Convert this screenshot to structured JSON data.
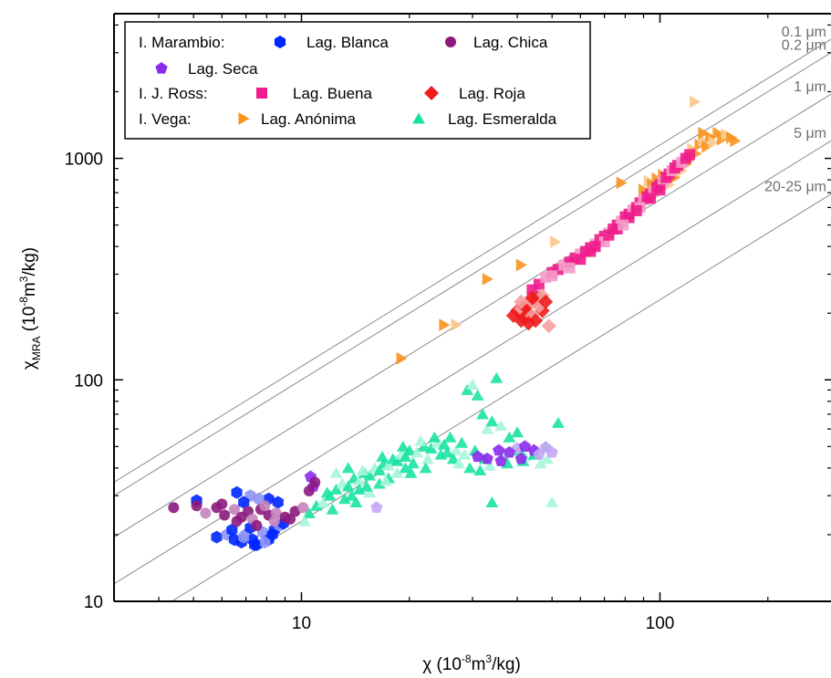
{
  "chart_data": {
    "type": "scatter",
    "xlabel": "χ (10⁻⁸m³/kg)",
    "ylabel": "χMRA (10⁻⁸m³/kg)",
    "xlabel_parts": {
      "prefix": "χ (10",
      "exp1": "-8",
      "mid": "m",
      "exp2": "3",
      "suffix": "/kg)"
    },
    "ylabel_parts": {
      "chi": "χ",
      "sub": "MRA",
      "open": " (10",
      "exp1": "-8",
      "mid": "m",
      "exp2": "3",
      "suffix": "/kg)"
    },
    "xscale": "log",
    "yscale": "log",
    "xlim": [
      3,
      300
    ],
    "ylim": [
      10,
      4500
    ],
    "x_tick_labels": [
      "10",
      "100"
    ],
    "y_tick_labels": [
      "10",
      "100",
      "1000"
    ],
    "grid": false,
    "legend_position": "top-left",
    "legend_groups": [
      {
        "label": "I. Marambio:",
        "series": [
          "Lag. Blanca",
          "Lag. Chica",
          "Lag. Seca"
        ]
      },
      {
        "label": "I. J. Ross:",
        "series": [
          "Lag. Buena",
          "Lag. Roja"
        ]
      },
      {
        "label": "I. Vega:",
        "series": [
          "Lag. Anónima",
          "Lag. Esmeralda"
        ]
      }
    ],
    "guide_lines": [
      {
        "label": "0.1 μm",
        "ratio": 11.5
      },
      {
        "label": "0.2 μm",
        "ratio": 10.0
      },
      {
        "label": "1 μm",
        "ratio": 6.5
      },
      {
        "label": "5 μm",
        "ratio": 4.0
      },
      {
        "label": "20-25 μm",
        "ratio": 2.3
      }
    ],
    "series": [
      {
        "name": "Lag. Blanca",
        "marker": "hexagon",
        "color": "#0026ff",
        "light_color": "#8c93f5",
        "points": [
          [
            5.1,
            28.5
          ],
          [
            6.6,
            31
          ],
          [
            7.2,
            30
          ],
          [
            8.1,
            29
          ],
          [
            6.9,
            28
          ],
          [
            7.6,
            29
          ],
          [
            8.6,
            28
          ],
          [
            5.8,
            19.5
          ],
          [
            6.2,
            20
          ],
          [
            6.5,
            19
          ],
          [
            6.8,
            18.5
          ],
          [
            7.0,
            20
          ],
          [
            7.3,
            19
          ],
          [
            7.5,
            18
          ],
          [
            7.8,
            20.5
          ],
          [
            8.1,
            19
          ],
          [
            8.4,
            21
          ],
          [
            8.7,
            22
          ],
          [
            7.2,
            21.5
          ],
          [
            6.4,
            21
          ],
          [
            7.9,
            18.5
          ],
          [
            8.3,
            20
          ],
          [
            7.4,
            18
          ],
          [
            6.9,
            19.5
          ],
          [
            8.9,
            22.5
          ]
        ]
      },
      {
        "name": "Lag. Chica",
        "marker": "circle",
        "color": "#8c1a7d",
        "light_color": "#c583bd",
        "points": [
          [
            4.4,
            26.5
          ],
          [
            5.1,
            27
          ],
          [
            5.4,
            25
          ],
          [
            5.8,
            26.5
          ],
          [
            6.1,
            24.5
          ],
          [
            6.5,
            26
          ],
          [
            6.8,
            24
          ],
          [
            7.1,
            25.5
          ],
          [
            7.3,
            23.5
          ],
          [
            7.7,
            26
          ],
          [
            8.1,
            24.5
          ],
          [
            8.5,
            25
          ],
          [
            9.0,
            24
          ],
          [
            9.6,
            25.5
          ],
          [
            10.1,
            26.5
          ],
          [
            10.5,
            31.5
          ],
          [
            10.9,
            34.5
          ],
          [
            8.4,
            23
          ],
          [
            7.5,
            22
          ],
          [
            6.6,
            23
          ],
          [
            7.9,
            27
          ],
          [
            9.3,
            23.5
          ],
          [
            6.0,
            27.5
          ]
        ]
      },
      {
        "name": "Lag. Seca",
        "marker": "pentagon",
        "color": "#8c2aed",
        "light_color": "#c4a6f5",
        "points": [
          [
            10.6,
            36.5
          ],
          [
            10.8,
            33
          ],
          [
            16.2,
            26.5
          ],
          [
            31.0,
            45
          ],
          [
            35.5,
            48
          ],
          [
            40.0,
            49
          ],
          [
            42.0,
            50
          ],
          [
            44.5,
            48
          ],
          [
            48.0,
            49.5
          ],
          [
            38.0,
            47
          ],
          [
            33.0,
            44
          ],
          [
            46.0,
            46
          ],
          [
            41.0,
            44
          ],
          [
            36.0,
            43
          ],
          [
            50.0,
            47
          ]
        ]
      },
      {
        "name": "Lag. Buena",
        "marker": "square",
        "color": "#f01c8c",
        "light_color": "#f59cc8",
        "points": [
          [
            44,
            255
          ],
          [
            46,
            270
          ],
          [
            48,
            290
          ],
          [
            50,
            305
          ],
          [
            52,
            315
          ],
          [
            54,
            330
          ],
          [
            56,
            340
          ],
          [
            58,
            355
          ],
          [
            60,
            370
          ],
          [
            62,
            380
          ],
          [
            64,
            395
          ],
          [
            66,
            410
          ],
          [
            68,
            430
          ],
          [
            70,
            445
          ],
          [
            72,
            460
          ],
          [
            74,
            480
          ],
          [
            76,
            500
          ],
          [
            78,
            520
          ],
          [
            80,
            545
          ],
          [
            82,
            560
          ],
          [
            84,
            585
          ],
          [
            86,
            600
          ],
          [
            88,
            630
          ],
          [
            90,
            650
          ],
          [
            92,
            670
          ],
          [
            94,
            690
          ],
          [
            96,
            710
          ],
          [
            98,
            740
          ],
          [
            100,
            760
          ],
          [
            102,
            790
          ],
          [
            104,
            820
          ],
          [
            106,
            850
          ],
          [
            108,
            880
          ],
          [
            110,
            905
          ],
          [
            112,
            930
          ],
          [
            115,
            960
          ],
          [
            118,
            1000
          ],
          [
            121,
            1040
          ],
          [
            56,
            320
          ],
          [
            60,
            350
          ],
          [
            64,
            380
          ],
          [
            70,
            420
          ],
          [
            76,
            480
          ],
          [
            82,
            540
          ],
          [
            88,
            600
          ],
          [
            94,
            660
          ],
          [
            100,
            720
          ],
          [
            50,
            295
          ],
          [
            66,
            400
          ],
          [
            72,
            450
          ],
          [
            79,
            500
          ],
          [
            86,
            580
          ]
        ]
      },
      {
        "name": "Lag. Roja",
        "marker": "diamond",
        "color": "#ee1c1c",
        "light_color": "#f5a0a0",
        "points": [
          [
            39,
            195
          ],
          [
            40,
            205
          ],
          [
            41,
            210
          ],
          [
            42,
            215
          ],
          [
            43,
            220
          ],
          [
            44,
            225
          ],
          [
            45,
            230
          ],
          [
            46,
            235
          ],
          [
            47,
            240
          ],
          [
            42,
            190
          ],
          [
            43,
            200
          ],
          [
            44,
            195
          ],
          [
            45,
            185
          ],
          [
            47,
            205
          ],
          [
            49,
            175
          ],
          [
            41,
            185
          ],
          [
            43,
            180
          ],
          [
            46,
            215
          ],
          [
            48,
            225
          ],
          [
            44,
            235
          ],
          [
            41,
            225
          ]
        ]
      },
      {
        "name": "Lag. Anónima",
        "marker": "triangle-right",
        "color": "#f7941d",
        "light_color": "#fbc88a",
        "points": [
          [
            19,
            125
          ],
          [
            25,
            177
          ],
          [
            27,
            177
          ],
          [
            33,
            285
          ],
          [
            41,
            330
          ],
          [
            51,
            420
          ],
          [
            78,
            775
          ],
          [
            90,
            720
          ],
          [
            93,
            790
          ],
          [
            95,
            760
          ],
          [
            98,
            810
          ],
          [
            100,
            740
          ],
          [
            102,
            840
          ],
          [
            105,
            800
          ],
          [
            108,
            870
          ],
          [
            110,
            820
          ],
          [
            112,
            900
          ],
          [
            115,
            880
          ],
          [
            118,
            940
          ],
          [
            120,
            980
          ],
          [
            123,
            1100
          ],
          [
            126,
            1050
          ],
          [
            129,
            1150
          ],
          [
            132,
            1200
          ],
          [
            135,
            1130
          ],
          [
            138,
            1250
          ],
          [
            141,
            1180
          ],
          [
            145,
            1300
          ],
          [
            149,
            1220
          ],
          [
            153,
            1280
          ],
          [
            158,
            1240
          ],
          [
            162,
            1200
          ],
          [
            125,
            1800
          ],
          [
            132,
            1300
          ],
          [
            96,
            680
          ],
          [
            106,
            760
          ]
        ]
      },
      {
        "name": "Lag. Esmeralda",
        "marker": "triangle-up",
        "color": "#19e3a3",
        "light_color": "#a6f5da",
        "points": [
          [
            10.5,
            25
          ],
          [
            11,
            27
          ],
          [
            11.5,
            28
          ],
          [
            12,
            30
          ],
          [
            12.5,
            32
          ],
          [
            13,
            34
          ],
          [
            13.5,
            33
          ],
          [
            14,
            36
          ],
          [
            14.5,
            35
          ],
          [
            15,
            38
          ],
          [
            15.5,
            37
          ],
          [
            16,
            40
          ],
          [
            16.5,
            39
          ],
          [
            17,
            42
          ],
          [
            17.5,
            41
          ],
          [
            18,
            44
          ],
          [
            18.5,
            43
          ],
          [
            19,
            46
          ],
          [
            19.5,
            45
          ],
          [
            20,
            48
          ],
          [
            21,
            47
          ],
          [
            22,
            50
          ],
          [
            23,
            49
          ],
          [
            24,
            52
          ],
          [
            25,
            51
          ],
          [
            26,
            55
          ],
          [
            27,
            48
          ],
          [
            28,
            52
          ],
          [
            29,
            90
          ],
          [
            30,
            95
          ],
          [
            31,
            85
          ],
          [
            32,
            70
          ],
          [
            33,
            60
          ],
          [
            34,
            65
          ],
          [
            35,
            102
          ],
          [
            36,
            62
          ],
          [
            38,
            55
          ],
          [
            40,
            58
          ],
          [
            42,
            45
          ],
          [
            45,
            46
          ],
          [
            48,
            50
          ],
          [
            50,
            28
          ],
          [
            52,
            64
          ],
          [
            34,
            28
          ],
          [
            12.5,
            38
          ],
          [
            13.5,
            40
          ],
          [
            14.5,
            32
          ],
          [
            15.5,
            31
          ],
          [
            16.5,
            34
          ],
          [
            17.5,
            36
          ],
          [
            18.5,
            38
          ],
          [
            19.5,
            40
          ],
          [
            20.5,
            42
          ],
          [
            22.5,
            44
          ],
          [
            24.5,
            46
          ],
          [
            26.5,
            44
          ],
          [
            28.5,
            46
          ],
          [
            30.5,
            48
          ],
          [
            32.5,
            44
          ],
          [
            36.5,
            46
          ],
          [
            40.5,
            48
          ],
          [
            44.5,
            46
          ],
          [
            48.5,
            44
          ],
          [
            11.8,
            31
          ],
          [
            13.2,
            29
          ],
          [
            14.8,
            39
          ],
          [
            16.8,
            45
          ],
          [
            19.2,
            50
          ],
          [
            21.5,
            53
          ],
          [
            23.5,
            55
          ],
          [
            25.5,
            47
          ],
          [
            27.5,
            42
          ],
          [
            29.5,
            40
          ],
          [
            31.5,
            39
          ],
          [
            33.5,
            41
          ],
          [
            37.5,
            42
          ],
          [
            41.5,
            43
          ],
          [
            46.5,
            42
          ],
          [
            13.8,
            30
          ],
          [
            15.2,
            33
          ],
          [
            17.2,
            35
          ],
          [
            20.2,
            38
          ],
          [
            22.2,
            40
          ],
          [
            10.2,
            23
          ],
          [
            12.2,
            26
          ],
          [
            14.2,
            28
          ]
        ]
      }
    ]
  }
}
